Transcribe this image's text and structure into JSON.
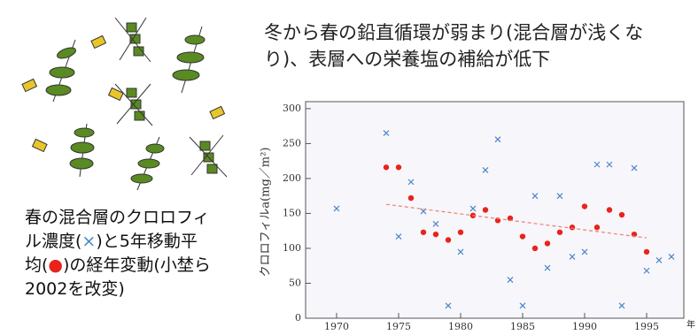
{
  "heading": {
    "lines": [
      "冬から春の鉛直循環が弱まり(混合層が浅くな",
      "り)、表層への栄養塩の補給が低下"
    ]
  },
  "caption": {
    "lines": [
      [
        "春の混合層のクロロフィ"
      ],
      [
        "ル濃度(",
        "×",
        ")と5年移動平"
      ],
      [
        "均(",
        "●",
        ")の経年変動(小埜ら"
      ],
      [
        "2002を改変)"
      ]
    ]
  },
  "chart_data": {
    "type": "scatter",
    "ylabel": "クロロフィルa(mg／m²)",
    "xlabel": "年",
    "xlim": [
      1967.5,
      1998
    ],
    "xticks": [
      1970,
      1975,
      1980,
      1985,
      1990,
      1995
    ],
    "ylim": [
      0,
      310
    ],
    "yticks": [
      0,
      50,
      100,
      150,
      200,
      250,
      300
    ],
    "series": [
      {
        "color": "#4a86c8",
        "marker": "x",
        "x": [
          1970,
          1974,
          1975,
          1976,
          1977,
          1978,
          1979,
          1980,
          1981,
          1982,
          1983,
          1984,
          1985,
          1986,
          1987,
          1988,
          1989,
          1990,
          1991,
          1992,
          1993,
          1994,
          1995,
          1996,
          1997
        ],
        "values": [
          157,
          265,
          117,
          195,
          153,
          135,
          18,
          95,
          157,
          212,
          256,
          55,
          18,
          175,
          72,
          175,
          88,
          95,
          220,
          220,
          18,
          215,
          68,
          83,
          88
        ]
      },
      {
        "color": "#e8231b",
        "marker": "dot",
        "x": [
          1974,
          1975,
          1976,
          1977,
          1978,
          1979,
          1980,
          1981,
          1982,
          1983,
          1984,
          1985,
          1986,
          1987,
          1988,
          1989,
          1990,
          1991,
          1992,
          1993,
          1994,
          1995
        ],
        "values": [
          216,
          216,
          172,
          123,
          120,
          112,
          123,
          147,
          155,
          140,
          143,
          117,
          100,
          107,
          123,
          130,
          160,
          130,
          155,
          148,
          120,
          95
        ]
      },
      {
        "color": "#f08070",
        "marker": "dashed-line",
        "x": [
          1974,
          1995
        ],
        "values": [
          163,
          115
        ]
      }
    ]
  }
}
